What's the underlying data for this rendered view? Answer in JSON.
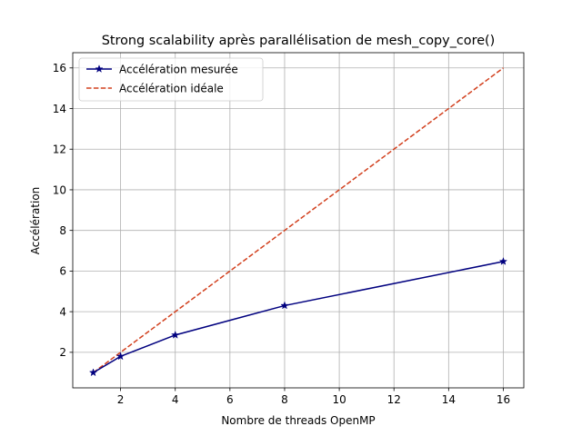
{
  "chart_data": {
    "type": "line",
    "title": "Strong scalability après parallélisation de mesh_copy_core()",
    "xlabel": "Nombre de threads OpenMP",
    "ylabel": "Accélération",
    "xlim": [
      0.25,
      16.75
    ],
    "ylim": [
      0.25,
      16.75
    ],
    "xticks": [
      2,
      4,
      6,
      8,
      10,
      12,
      14,
      16
    ],
    "yticks": [
      2,
      4,
      6,
      8,
      10,
      12,
      14,
      16
    ],
    "grid": true,
    "legend_position": "upper left",
    "x": [
      1,
      2,
      4,
      8,
      16
    ],
    "series": [
      {
        "name": "Accélération mesurée",
        "values": [
          1.0,
          1.8,
          2.85,
          4.3,
          6.47
        ],
        "color": "#00007f",
        "line_style": "solid",
        "marker": "star"
      },
      {
        "name": "Accélération idéale",
        "values": [
          1,
          2,
          4,
          8,
          16
        ],
        "color": "#d2401e",
        "line_style": "dashed",
        "marker": "none"
      }
    ]
  }
}
